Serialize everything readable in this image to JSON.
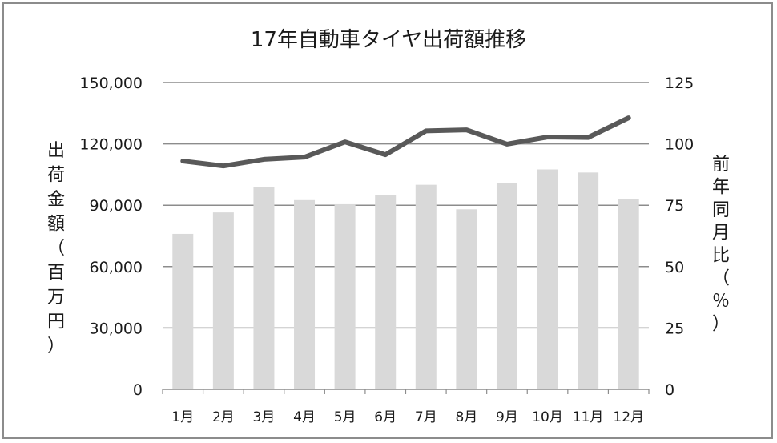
{
  "chart_data": {
    "type": "bar",
    "title": "17年自動車タイヤ出荷額推移",
    "categories": [
      "1月",
      "2月",
      "3月",
      "4月",
      "5月",
      "6月",
      "7月",
      "8月",
      "9月",
      "10月",
      "11月",
      "12月"
    ],
    "series": [
      {
        "name": "出荷額",
        "type": "bar",
        "axis": "left",
        "color": "#d9d9d9",
        "values": [
          76000,
          86500,
          99000,
          92500,
          90500,
          95000,
          100000,
          88000,
          101000,
          107500,
          106000,
          93000
        ]
      },
      {
        "name": "前年同月比",
        "type": "line",
        "axis": "right",
        "color": "#595959",
        "values": [
          93,
          91,
          93.7,
          94.6,
          100.8,
          95.6,
          105.3,
          105.7,
          99.9,
          102.8,
          102.6,
          110.6
        ]
      }
    ],
    "left_axis": {
      "label": "出荷金額（百万円）",
      "ylim": [
        0,
        150000
      ],
      "ticks": [
        "0",
        "30,000",
        "60,000",
        "90,000",
        "120,000",
        "150,000"
      ]
    },
    "right_axis": {
      "label": "前年同月比（％）",
      "ylim": [
        0,
        125
      ],
      "ticks": [
        "0",
        "25",
        "50",
        "75",
        "100",
        "125"
      ]
    },
    "grid": true,
    "legend": "none"
  }
}
